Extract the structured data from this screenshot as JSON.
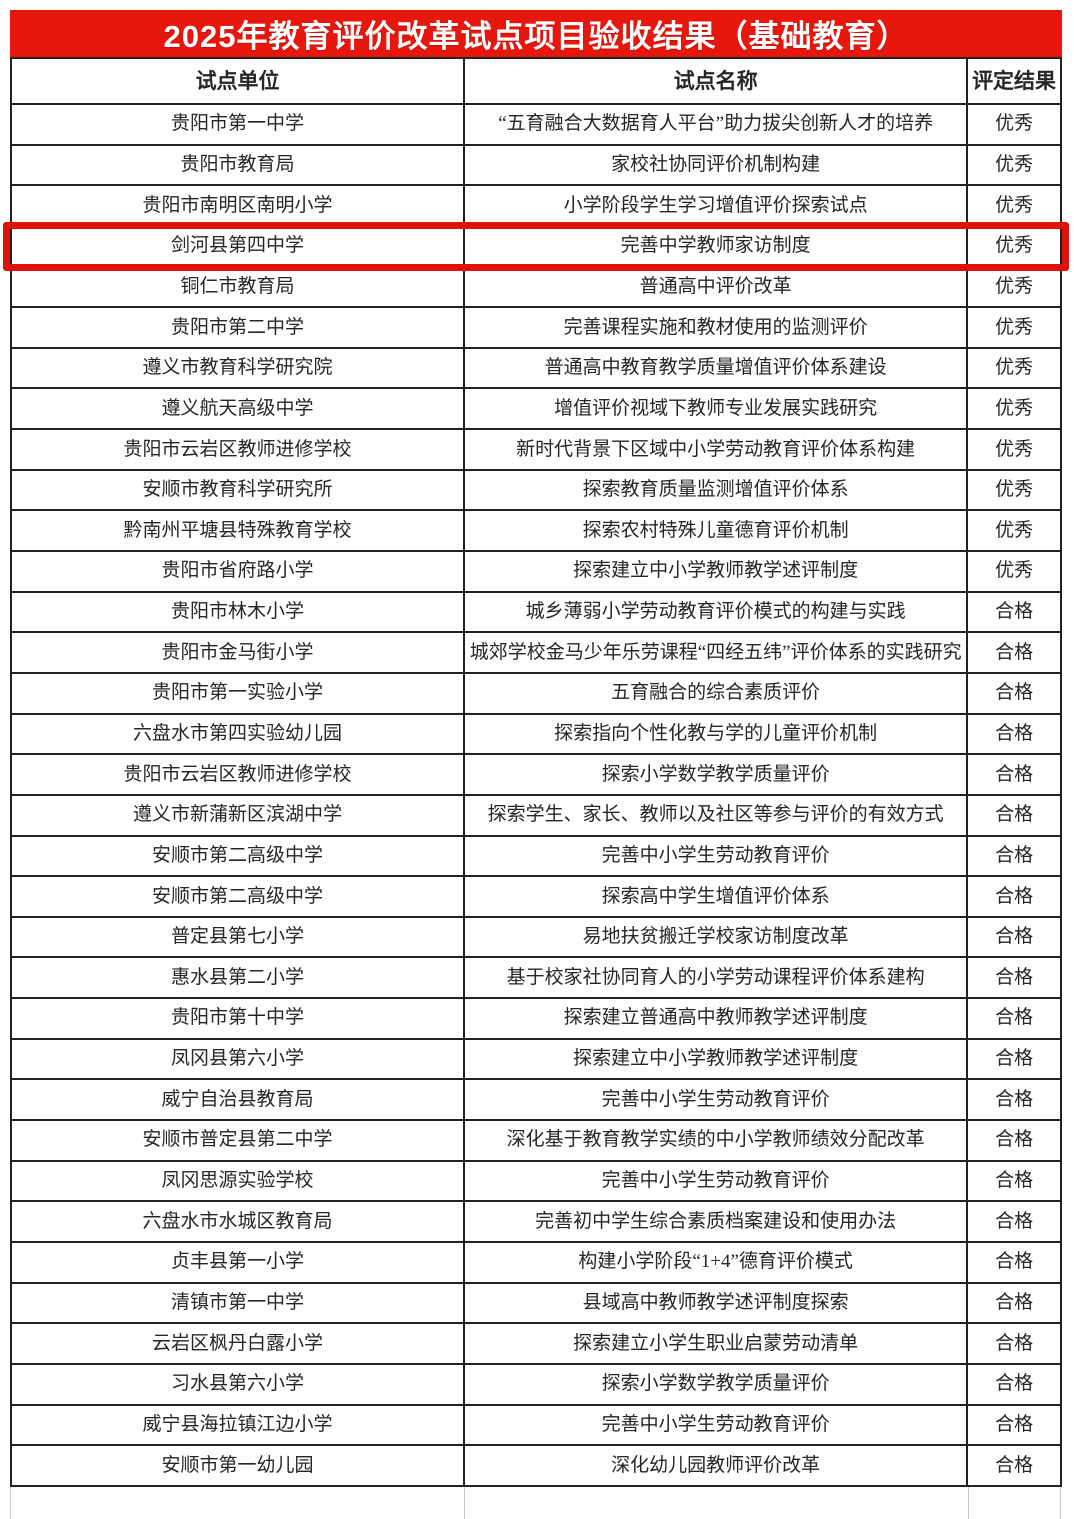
{
  "title": "2025年教育评价改革试点项目验收结果（基础教育）",
  "colors": {
    "title_bg": "#e8170d",
    "highlight_box": "#dd1208",
    "border": "#222222",
    "text": "#262626"
  },
  "table": {
    "columns": [
      "试点单位",
      "试点名称",
      "评定结果"
    ],
    "highlight_row_index": 3,
    "rows": [
      {
        "unit": "贵阳市第一中学",
        "name": "“五育融合大数据育人平台”助力拔尖创新人才的培养",
        "result": "优秀"
      },
      {
        "unit": "贵阳市教育局",
        "name": "家校社协同评价机制构建",
        "result": "优秀"
      },
      {
        "unit": "贵阳市南明区南明小学",
        "name": "小学阶段学生学习增值评价探索试点",
        "result": "优秀"
      },
      {
        "unit": "剑河县第四中学",
        "name": "完善中学教师家访制度",
        "result": "优秀"
      },
      {
        "unit": "铜仁市教育局",
        "name": "普通高中评价改革",
        "result": "优秀"
      },
      {
        "unit": "贵阳市第二中学",
        "name": "完善课程实施和教材使用的监测评价",
        "result": "优秀"
      },
      {
        "unit": "遵义市教育科学研究院",
        "name": "普通高中教育教学质量增值评价体系建设",
        "result": "优秀"
      },
      {
        "unit": "遵义航天高级中学",
        "name": "增值评价视域下教师专业发展实践研究",
        "result": "优秀"
      },
      {
        "unit": "贵阳市云岩区教师进修学校",
        "name": "新时代背景下区域中小学劳动教育评价体系构建",
        "result": "优秀"
      },
      {
        "unit": "安顺市教育科学研究所",
        "name": "探索教育质量监测增值评价体系",
        "result": "优秀"
      },
      {
        "unit": "黔南州平塘县特殊教育学校",
        "name": "探索农村特殊儿童德育评价机制",
        "result": "优秀"
      },
      {
        "unit": "贵阳市省府路小学",
        "name": "探索建立中小学教师教学述评制度",
        "result": "优秀"
      },
      {
        "unit": "贵阳市林木小学",
        "name": "城乡薄弱小学劳动教育评价模式的构建与实践",
        "result": "合格"
      },
      {
        "unit": "贵阳市金马街小学",
        "name": "城郊学校金马少年乐劳课程“四经五纬”评价体系的实践研究",
        "result": "合格"
      },
      {
        "unit": "贵阳市第一实验小学",
        "name": "五育融合的综合素质评价",
        "result": "合格"
      },
      {
        "unit": "六盘水市第四实验幼儿园",
        "name": "探索指向个性化教与学的儿童评价机制",
        "result": "合格"
      },
      {
        "unit": "贵阳市云岩区教师进修学校",
        "name": "探索小学数学教学质量评价",
        "result": "合格"
      },
      {
        "unit": "遵义市新蒲新区滨湖中学",
        "name": "探索学生、家长、教师以及社区等参与评价的有效方式",
        "result": "合格"
      },
      {
        "unit": "安顺市第二高级中学",
        "name": "完善中小学生劳动教育评价",
        "result": "合格"
      },
      {
        "unit": "安顺市第二高级中学",
        "name": "探索高中学生增值评价体系",
        "result": "合格"
      },
      {
        "unit": "普定县第七小学",
        "name": "易地扶贫搬迁学校家访制度改革",
        "result": "合格"
      },
      {
        "unit": "惠水县第二小学",
        "name": "基于校家社协同育人的小学劳动课程评价体系建构",
        "result": "合格"
      },
      {
        "unit": "贵阳市第十中学",
        "name": "探索建立普通高中教师教学述评制度",
        "result": "合格"
      },
      {
        "unit": "凤冈县第六小学",
        "name": "探索建立中小学教师教学述评制度",
        "result": "合格"
      },
      {
        "unit": "威宁自治县教育局",
        "name": "完善中小学生劳动教育评价",
        "result": "合格"
      },
      {
        "unit": "安顺市普定县第二中学",
        "name": "深化基于教育教学实绩的中小学教师绩效分配改革",
        "result": "合格"
      },
      {
        "unit": "凤冈思源实验学校",
        "name": "完善中小学生劳动教育评价",
        "result": "合格"
      },
      {
        "unit": "六盘水市水城区教育局",
        "name": "完善初中学生综合素质档案建设和使用办法",
        "result": "合格"
      },
      {
        "unit": "贞丰县第一小学",
        "name": "构建小学阶段“1+4”德育评价模式",
        "result": "合格"
      },
      {
        "unit": "清镇市第一中学",
        "name": "县域高中教师教学述评制度探索",
        "result": "合格"
      },
      {
        "unit": "云岩区枫丹白露小学",
        "name": "探索建立小学生职业启蒙劳动清单",
        "result": "合格"
      },
      {
        "unit": "习水县第六小学",
        "name": "探索小学数学教学质量评价",
        "result": "合格"
      },
      {
        "unit": "威宁县海拉镇江边小学",
        "name": "完善中小学生劳动教育评价",
        "result": "合格"
      },
      {
        "unit": "安顺市第一幼儿园",
        "name": "深化幼儿园教师评价改革",
        "result": "合格"
      }
    ]
  }
}
